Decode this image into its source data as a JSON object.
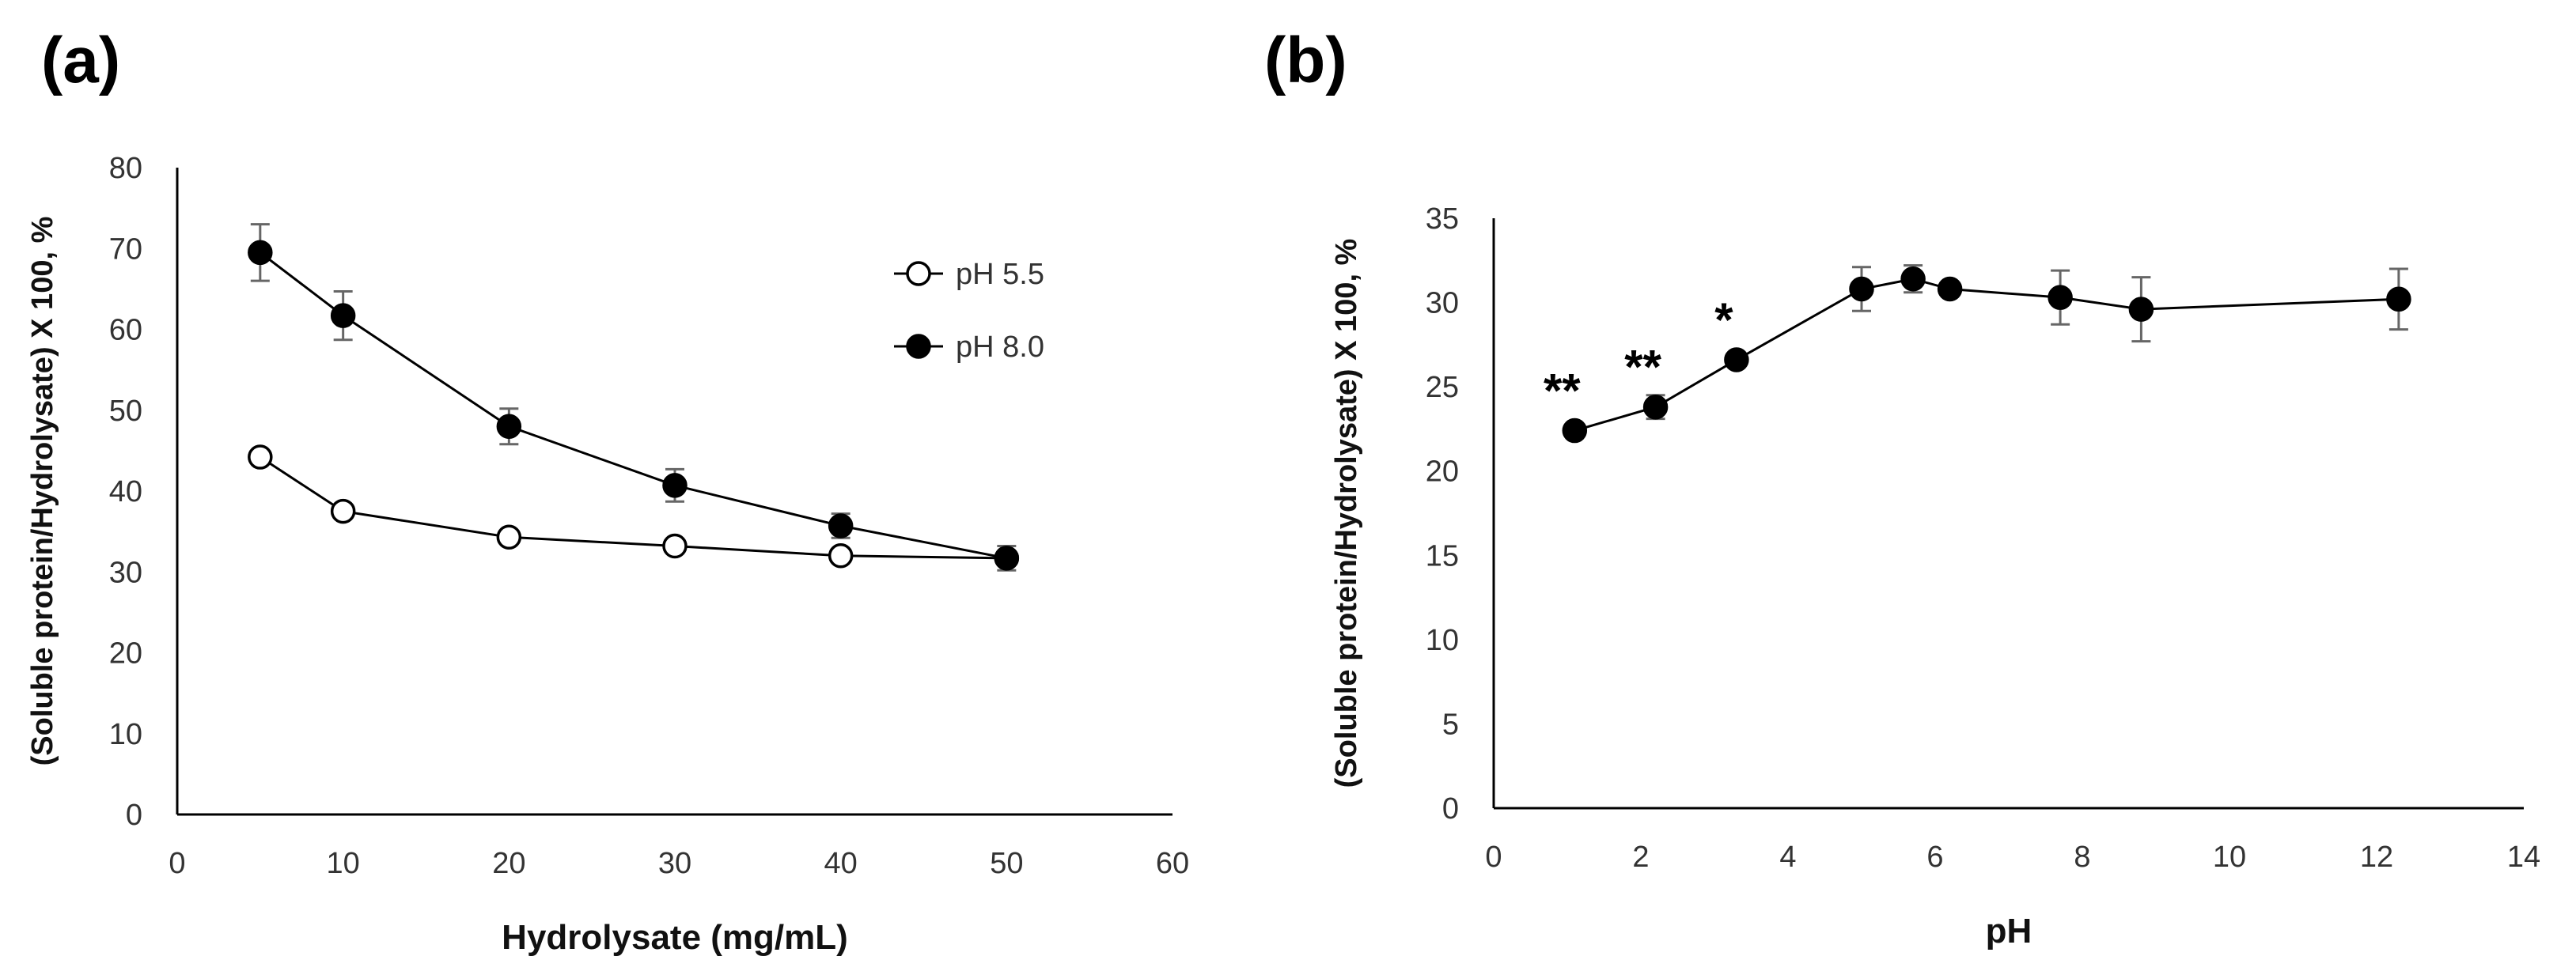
{
  "chart_data": [
    {
      "panel_label": "(a)",
      "type": "line",
      "xlabel": "Hydrolysate (mg/mL)",
      "ylabel": "(Soluble protein/Hydrolysate) X 100, %",
      "xlim": [
        0,
        60
      ],
      "ylim": [
        0,
        80
      ],
      "x_ticks": [
        0,
        10,
        20,
        30,
        40,
        50,
        60
      ],
      "y_ticks": [
        0,
        10,
        20,
        30,
        40,
        50,
        60,
        70,
        80
      ],
      "grid": false,
      "legend_position": "top-right",
      "series": [
        {
          "name": "pH 5.5",
          "marker": "open-circle",
          "x": [
            5,
            10,
            20,
            30,
            40,
            50
          ],
          "y": [
            44.2,
            37.5,
            34.3,
            33.2,
            32.0,
            31.7
          ],
          "err": [
            0,
            0,
            0,
            0,
            0,
            0
          ]
        },
        {
          "name": "pH 8.0",
          "marker": "filled-circle",
          "x": [
            5,
            10,
            20,
            30,
            40,
            50
          ],
          "y": [
            69.5,
            61.7,
            48.0,
            40.7,
            35.7,
            31.7
          ],
          "err": [
            3.5,
            3.0,
            2.2,
            2.0,
            1.5,
            1.5
          ]
        }
      ]
    },
    {
      "panel_label": "(b)",
      "type": "line",
      "xlabel": "pH",
      "ylabel": "(Soluble protein/Hydrolysate) X 100, %",
      "xlim": [
        0,
        14
      ],
      "ylim": [
        0,
        35
      ],
      "x_ticks": [
        0,
        2,
        4,
        6,
        8,
        10,
        12,
        14
      ],
      "y_ticks": [
        0,
        5,
        10,
        15,
        20,
        25,
        30,
        35
      ],
      "grid": false,
      "series": [
        {
          "marker": "filled-circle",
          "x": [
            1.1,
            2.2,
            3.3,
            5.0,
            5.7,
            6.2,
            7.7,
            8.8,
            12.3
          ],
          "y": [
            22.4,
            23.8,
            26.6,
            30.8,
            31.4,
            30.8,
            30.3,
            29.6,
            30.2
          ],
          "err": [
            0.4,
            0.7,
            0.4,
            1.3,
            0.8,
            0.3,
            1.6,
            1.9,
            1.8
          ]
        }
      ],
      "annotations": [
        {
          "text": "**",
          "x": 1.1,
          "y": 22.4
        },
        {
          "text": "**",
          "x": 2.2,
          "y": 23.8
        },
        {
          "text": "*",
          "x": 3.3,
          "y": 26.6
        }
      ]
    }
  ]
}
